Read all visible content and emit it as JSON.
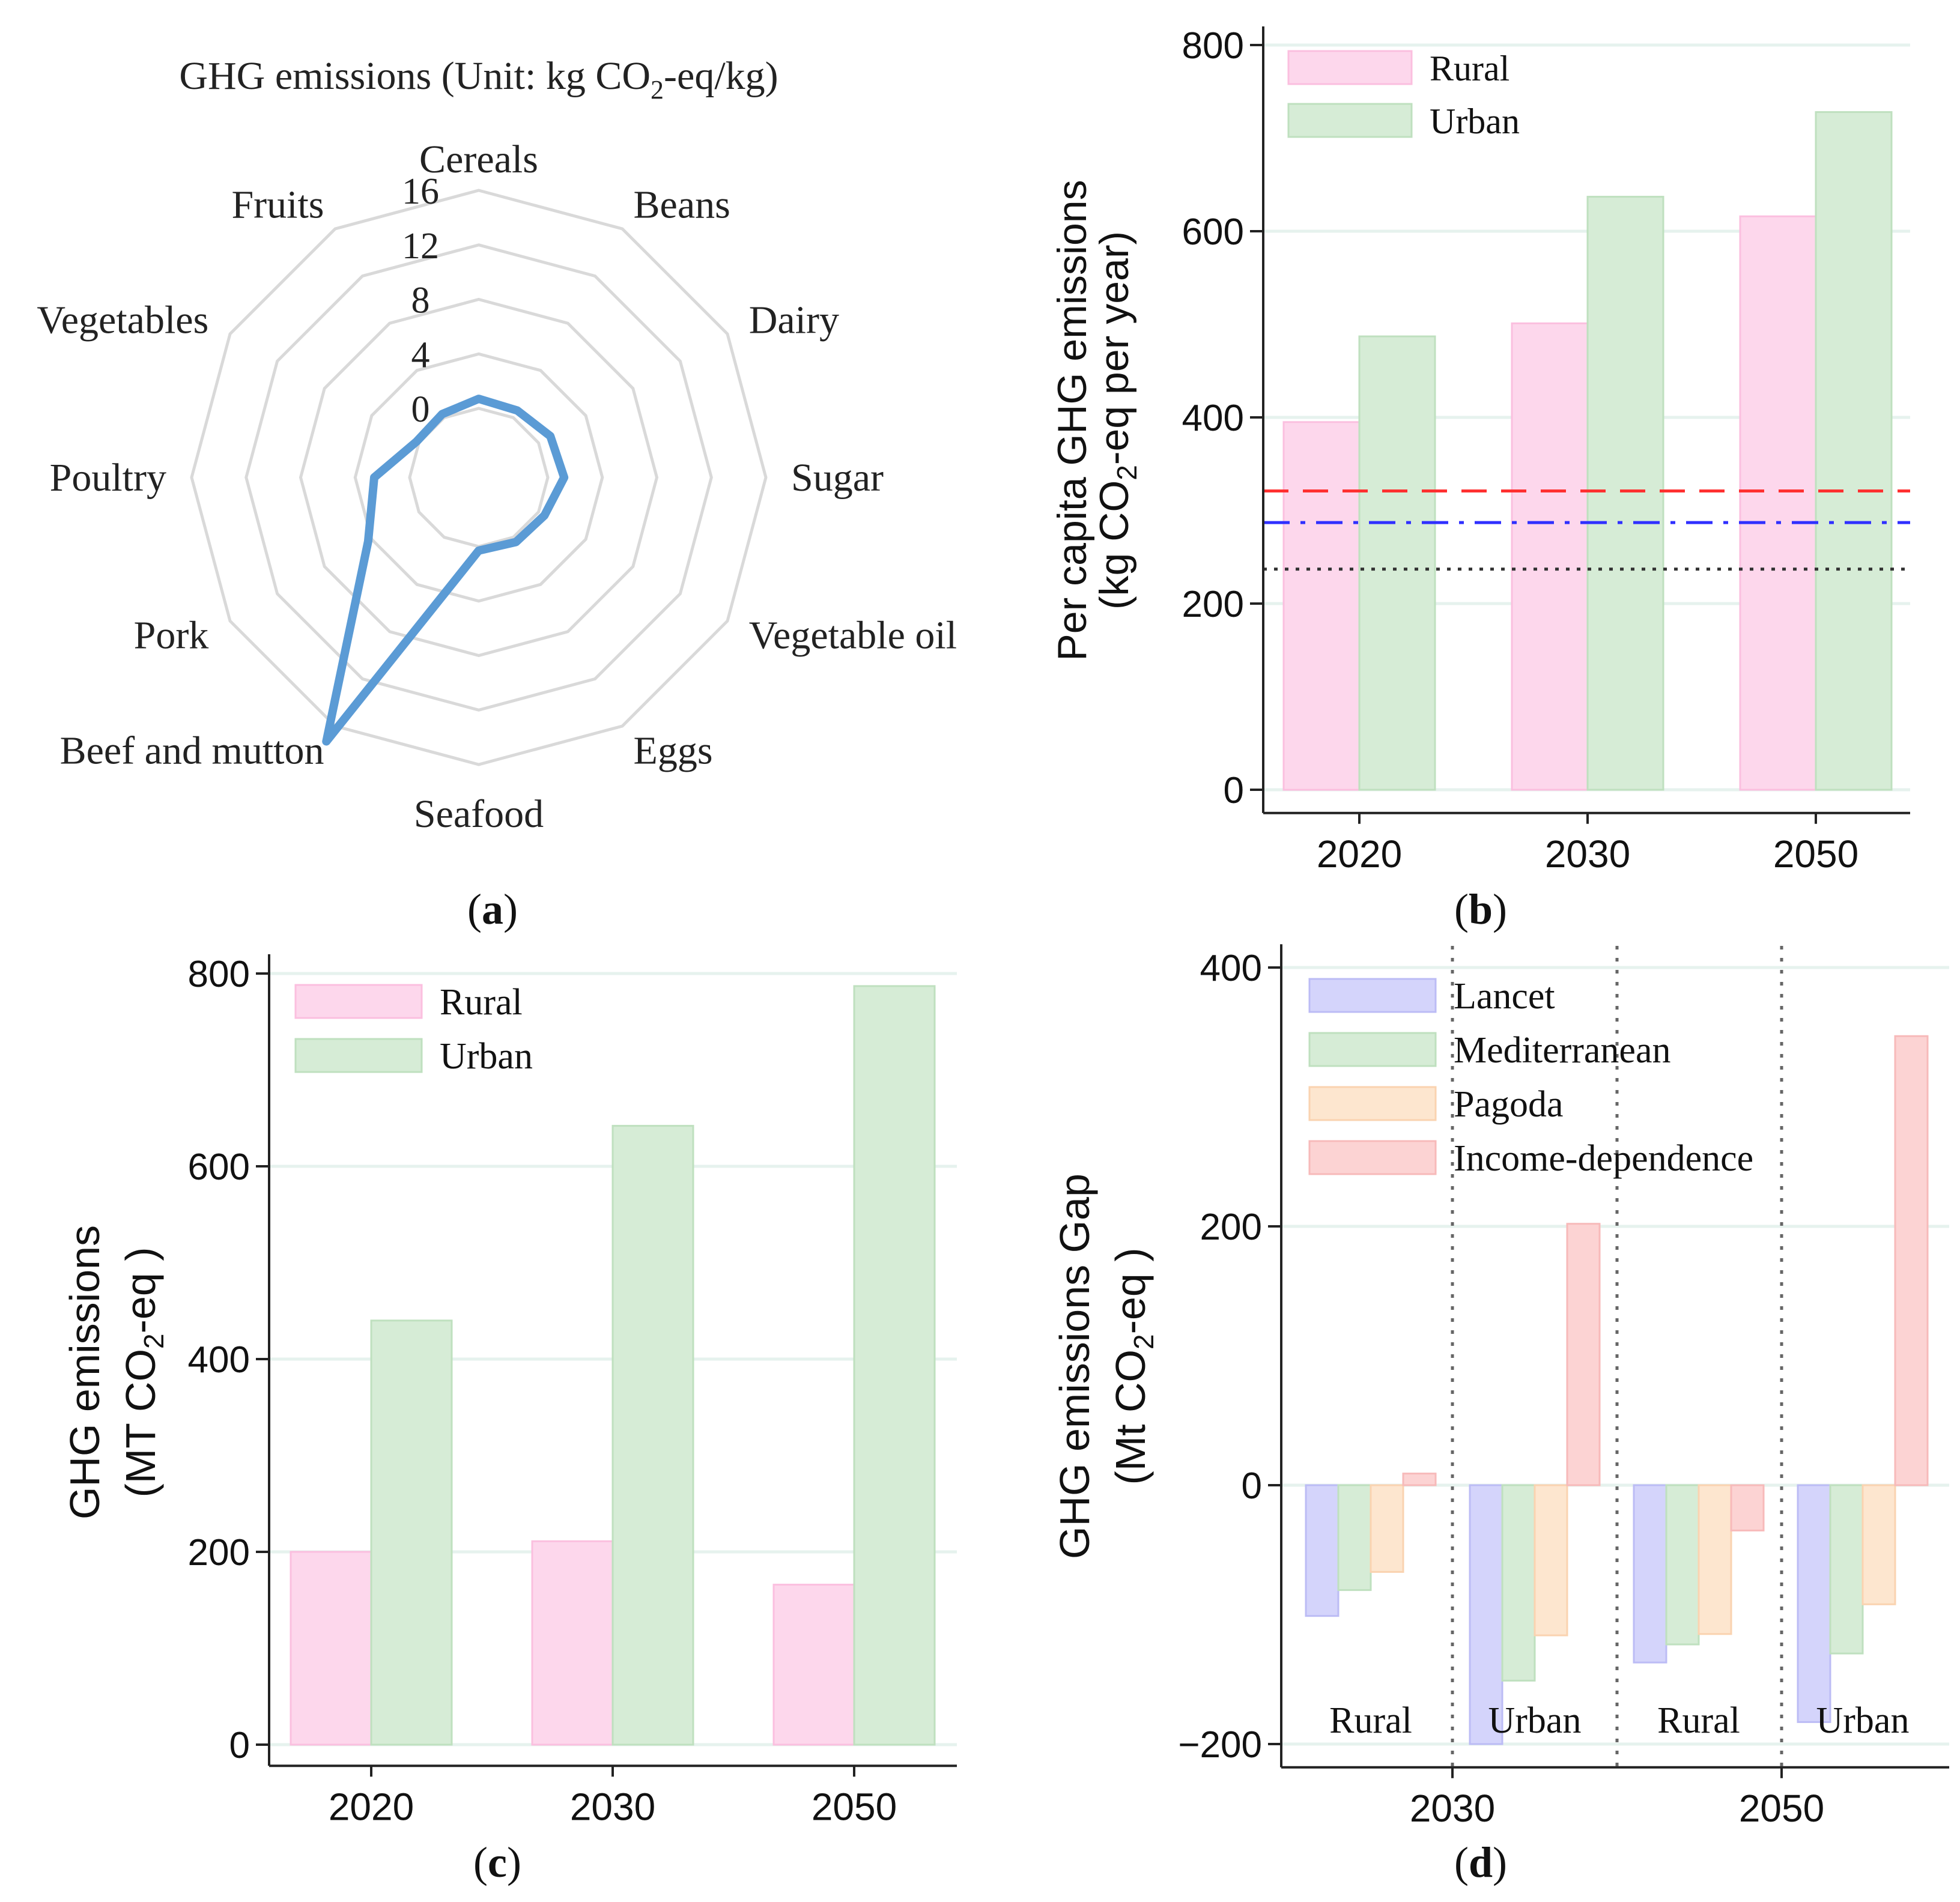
{
  "chart_data": [
    {
      "id": "a",
      "type": "radar",
      "panel_label": "a",
      "title_prefix": "GHG emissions (Unit: kg CO",
      "title_sub": "2",
      "title_suffix": "-eq/kg)",
      "categories": [
        "Cereals",
        "Beans",
        "Dairy",
        "Sugar",
        "Vegetable oil",
        "Eggs",
        "Seafood",
        "Beef and mutton",
        "Pork",
        "Poultry",
        "Vegetables",
        "Fruits"
      ],
      "values": [
        0.7,
        0.6,
        1.0,
        1.2,
        0.5,
        0.4,
        0.3,
        17.3,
        4.3,
        2.6,
        0.2,
        0.3
      ],
      "rlim": [
        0,
        16
      ],
      "r_ticks": [
        0,
        4,
        8,
        12,
        16
      ],
      "r_tick_labels": [
        "0",
        "4",
        "8",
        "12",
        "16"
      ],
      "r_offset": 4,
      "series_color": "#5b9bd5",
      "grid_color": "#d9d9d9"
    },
    {
      "id": "b",
      "type": "bar",
      "panel_label": "b",
      "categories": [
        "2020",
        "2030",
        "2050"
      ],
      "series": [
        {
          "name": "Rural",
          "values": [
            395,
            501,
            616
          ],
          "color": "#fdd7ec",
          "edge": "#fbbfdf"
        },
        {
          "name": "Urban",
          "values": [
            487,
            637,
            728
          ],
          "color": "#d6ecd6",
          "edge": "#bfe0bf"
        }
      ],
      "ylabel_line1": "Per capita GHG emissions",
      "ylabel_line2_prefix": "(kg CO",
      "ylabel_line2_sub": "2",
      "ylabel_line2_suffix": "-eq per year)",
      "ylim": [
        -25,
        820
      ],
      "yticks": [
        0,
        200,
        400,
        600,
        800
      ],
      "ytick_labels": [
        "0",
        "200",
        "400",
        "600",
        "800"
      ],
      "reference_lines": [
        {
          "value": 321,
          "color": "#ff3030",
          "style": "longdash"
        },
        {
          "value": 287,
          "color": "#3030ff",
          "style": "dashdot"
        },
        {
          "value": 237,
          "color": "#333333",
          "style": "dotted"
        }
      ],
      "legend": "top-left"
    },
    {
      "id": "c",
      "type": "bar",
      "panel_label": "c",
      "categories": [
        "2020",
        "2030",
        "2050"
      ],
      "series": [
        {
          "name": "Rural",
          "values": [
            200,
            211,
            166
          ],
          "color": "#fdd7ec",
          "edge": "#fbbfdf"
        },
        {
          "name": "Urban",
          "values": [
            440,
            642,
            787
          ],
          "color": "#d6ecd6",
          "edge": "#bfe0bf"
        }
      ],
      "ylabel_line1": "GHG emissions",
      "ylabel_line2_prefix": "(MT CO",
      "ylabel_line2_sub": "2",
      "ylabel_line2_suffix": "-eq )",
      "ylim": [
        -22,
        820
      ],
      "yticks": [
        0,
        200,
        400,
        600,
        800
      ],
      "ytick_labels": [
        "0",
        "200",
        "400",
        "600",
        "800"
      ],
      "legend": "top-left"
    },
    {
      "id": "d",
      "type": "bar",
      "panel_label": "d",
      "groups": [
        "Rural",
        "Urban",
        "Rural",
        "Urban"
      ],
      "group_years": [
        "2030",
        "2050"
      ],
      "series": [
        {
          "name": "Lancet",
          "values": [
            -101,
            -200,
            -137,
            -183
          ],
          "color": "#d4d4fb",
          "edge": "#bcbcf5"
        },
        {
          "name": "Mediterranean",
          "values": [
            -81,
            -151,
            -123,
            -130
          ],
          "color": "#d6ecd6",
          "edge": "#bfe0bf"
        },
        {
          "name": "Pagoda",
          "values": [
            -67,
            -116,
            -115,
            -92
          ],
          "color": "#fde6cf",
          "edge": "#fad3b0"
        },
        {
          "name": "Income-dependence",
          "values": [
            9,
            202,
            -35,
            347
          ],
          "color": "#fcd3d3",
          "edge": "#f7baba"
        }
      ],
      "ylabel_line1": "GHG emissions Gap",
      "ylabel_line2_prefix": "(Mt CO",
      "ylabel_line2_sub": "2",
      "ylabel_line2_suffix": "-eq )",
      "ylim": [
        -218,
        418
      ],
      "yticks": [
        -200,
        0,
        200,
        400
      ],
      "ytick_labels": [
        "−200",
        "0",
        "200",
        "400"
      ],
      "legend": "top-left"
    }
  ]
}
